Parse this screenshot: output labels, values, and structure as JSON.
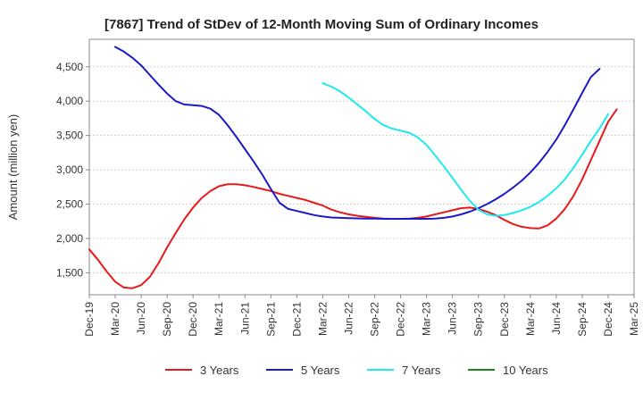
{
  "chart_data": {
    "type": "line",
    "title": "[7867]  Trend of StDev of 12-Month Moving Sum of Ordinary Incomes",
    "ylabel": "Amount (million yen)",
    "xlabel": "",
    "ylim": [
      1180,
      4900
    ],
    "yticks": [
      1500,
      2000,
      2500,
      3000,
      3500,
      4000,
      4500
    ],
    "ytick_labels": [
      "1,500",
      "2,000",
      "2,500",
      "3,000",
      "3,500",
      "4,000",
      "4,500"
    ],
    "x_labels": [
      "Dec-19",
      "Mar-20",
      "Jun-20",
      "Sep-20",
      "Dec-20",
      "Mar-21",
      "Jun-21",
      "Sep-21",
      "Dec-21",
      "Mar-22",
      "Jun-22",
      "Sep-22",
      "Dec-22",
      "Mar-23",
      "Jun-23",
      "Sep-23",
      "Dec-23",
      "Mar-24",
      "Jun-24",
      "Sep-24",
      "Dec-24",
      "Mar-25"
    ],
    "x_start": "Dec-19",
    "months_total": 63,
    "series": [
      {
        "name": "3 Years",
        "color": "#e8191b",
        "start_month": 0,
        "values": [
          1840,
          1690,
          1520,
          1370,
          1285,
          1275,
          1320,
          1440,
          1640,
          1870,
          2080,
          2280,
          2450,
          2590,
          2690,
          2760,
          2790,
          2790,
          2775,
          2750,
          2720,
          2690,
          2650,
          2620,
          2590,
          2560,
          2520,
          2480,
          2420,
          2380,
          2350,
          2330,
          2315,
          2300,
          2290,
          2285,
          2285,
          2290,
          2300,
          2320,
          2350,
          2380,
          2410,
          2440,
          2450,
          2430,
          2390,
          2340,
          2270,
          2210,
          2170,
          2150,
          2145,
          2190,
          2290,
          2430,
          2620,
          2860,
          3140,
          3420,
          3700,
          3880
        ]
      },
      {
        "name": "5 Years",
        "color": "#1a1ac8",
        "start_month": 3,
        "values": [
          4790,
          4720,
          4630,
          4520,
          4380,
          4240,
          4110,
          4000,
          3950,
          3940,
          3930,
          3890,
          3800,
          3650,
          3480,
          3300,
          3120,
          2930,
          2720,
          2520,
          2430,
          2400,
          2370,
          2340,
          2320,
          2305,
          2300,
          2295,
          2292,
          2290,
          2288,
          2286,
          2285,
          2285,
          2285,
          2285,
          2285,
          2290,
          2300,
          2320,
          2350,
          2390,
          2440,
          2500,
          2570,
          2650,
          2740,
          2840,
          2960,
          3100,
          3260,
          3440,
          3650,
          3880,
          4120,
          4350,
          4470
        ]
      },
      {
        "name": "7 Years",
        "color": "#1fe8f0",
        "start_month": 27,
        "values": [
          4260,
          4210,
          4140,
          4050,
          3950,
          3850,
          3740,
          3650,
          3600,
          3570,
          3540,
          3470,
          3360,
          3210,
          3050,
          2880,
          2710,
          2550,
          2420,
          2350,
          2330,
          2340,
          2370,
          2410,
          2460,
          2530,
          2620,
          2730,
          2860,
          3030,
          3220,
          3420,
          3600,
          3810
        ]
      },
      {
        "name": "10 Years",
        "color": "#1a8a1a",
        "start_month": 0,
        "values": []
      }
    ]
  }
}
